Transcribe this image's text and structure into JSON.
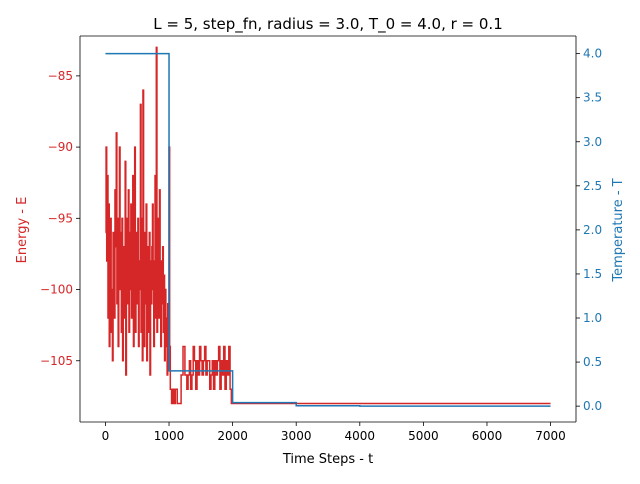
{
  "chart_data": {
    "type": "line",
    "title": "L = 5, step_fn, radius = 3.0, T_0 = 4.0, r = 0.1",
    "xlabel": "Time Steps - t",
    "ylabel_left": "Energy - E",
    "ylabel_right": "Temperature - T",
    "xlim": [
      -400,
      7400
    ],
    "ylim_left": [
      -109.3,
      -82.2
    ],
    "ylim_right": [
      -0.18,
      4.2
    ],
    "x_ticks": [
      0,
      1000,
      2000,
      3000,
      4000,
      5000,
      6000,
      7000
    ],
    "y_left_ticks": [
      -85,
      -90,
      -95,
      -100,
      -105
    ],
    "y_right_ticks": [
      "0.0",
      "0.5",
      "1.0",
      "1.5",
      "2.0",
      "2.5",
      "3.0",
      "3.5",
      "4.0"
    ],
    "grid": false,
    "colors": {
      "energy": "#d62728",
      "temperature": "#1f77b4",
      "axis": "#000000"
    },
    "series": [
      {
        "axis": "left",
        "color": "#d62728",
        "x": [
          0,
          10,
          20,
          30,
          40,
          50,
          60,
          70,
          80,
          90,
          100,
          110,
          120,
          130,
          140,
          150,
          160,
          170,
          180,
          190,
          200,
          210,
          220,
          230,
          240,
          250,
          260,
          270,
          280,
          290,
          300,
          310,
          320,
          330,
          340,
          350,
          360,
          370,
          380,
          390,
          400,
          410,
          420,
          430,
          440,
          450,
          460,
          470,
          480,
          490,
          500,
          510,
          520,
          530,
          540,
          550,
          560,
          570,
          580,
          590,
          600,
          610,
          620,
          630,
          640,
          650,
          660,
          670,
          680,
          690,
          700,
          710,
          720,
          730,
          740,
          750,
          760,
          770,
          780,
          790,
          800,
          810,
          820,
          830,
          840,
          850,
          860,
          870,
          880,
          890,
          900,
          910,
          920,
          930,
          940,
          950,
          960,
          970,
          980,
          990,
          1000,
          1010,
          1020,
          1040,
          1060,
          1080,
          1100,
          1130,
          1160,
          1190,
          1220,
          1250,
          1280,
          1300,
          1320,
          1340,
          1360,
          1380,
          1400,
          1420,
          1440,
          1460,
          1480,
          1500,
          1520,
          1540,
          1560,
          1580,
          1600,
          1620,
          1640,
          1660,
          1680,
          1700,
          1720,
          1740,
          1760,
          1780,
          1800,
          1820,
          1840,
          1860,
          1880,
          1900,
          1920,
          1940,
          1960,
          1980,
          2000,
          2100,
          3000,
          4000,
          5000,
          6000,
          7000
        ],
        "y": [
          -96,
          -90,
          -98,
          -92,
          -102,
          -94,
          -104,
          -97,
          -95,
          -103,
          -100,
          -105,
          -96,
          -99,
          -102,
          -93,
          -97,
          -89,
          -101,
          -95,
          -104,
          -98,
          -90,
          -100,
          -96,
          -103,
          -95,
          -105,
          -99,
          -97,
          -102,
          -91,
          -106,
          -99,
          -95,
          -101,
          -93,
          -103,
          -96,
          -100,
          -94,
          -102,
          -98,
          -92,
          -104,
          -97,
          -90,
          -103,
          -99,
          -96,
          -101,
          -95,
          -104,
          -100,
          -98,
          -87,
          -103,
          -95,
          -105,
          -86,
          -99,
          -104,
          -96,
          -101,
          -94,
          -105,
          -97,
          -99,
          -103,
          -96,
          -106,
          -98,
          -101,
          -97,
          -94,
          -100,
          -104,
          -98,
          -92,
          -102,
          -83,
          -103,
          -99,
          -95,
          -102,
          -93,
          -100,
          -104,
          -98,
          -101,
          -97,
          -103,
          -99,
          -105,
          -100,
          -104,
          -102,
          -106,
          -101,
          -103,
          -90,
          -104,
          -107,
          -108,
          -107,
          -108,
          -107,
          -108,
          -108,
          -106,
          -104,
          -106,
          -107,
          -106,
          -105,
          -107,
          -106,
          -104,
          -105,
          -107,
          -105,
          -106,
          -104,
          -105,
          -106,
          -105,
          -104,
          -106,
          -105,
          -105,
          -107,
          -106,
          -105,
          -107,
          -105,
          -106,
          -105,
          -104,
          -107,
          -105,
          -106,
          -104,
          -107,
          -105,
          -106,
          -104,
          -107,
          -108,
          -108,
          -108,
          -108,
          -108,
          -108,
          -108,
          -108
        ]
      },
      {
        "axis": "right",
        "color": "#1f77b4",
        "x": [
          0,
          1000,
          1000,
          2000,
          2000,
          3000,
          3000,
          4000,
          4000,
          7000
        ],
        "y": [
          4.0,
          4.0,
          0.4,
          0.4,
          0.04,
          0.04,
          0.004,
          0.004,
          0.0004,
          0.0004
        ]
      }
    ]
  }
}
